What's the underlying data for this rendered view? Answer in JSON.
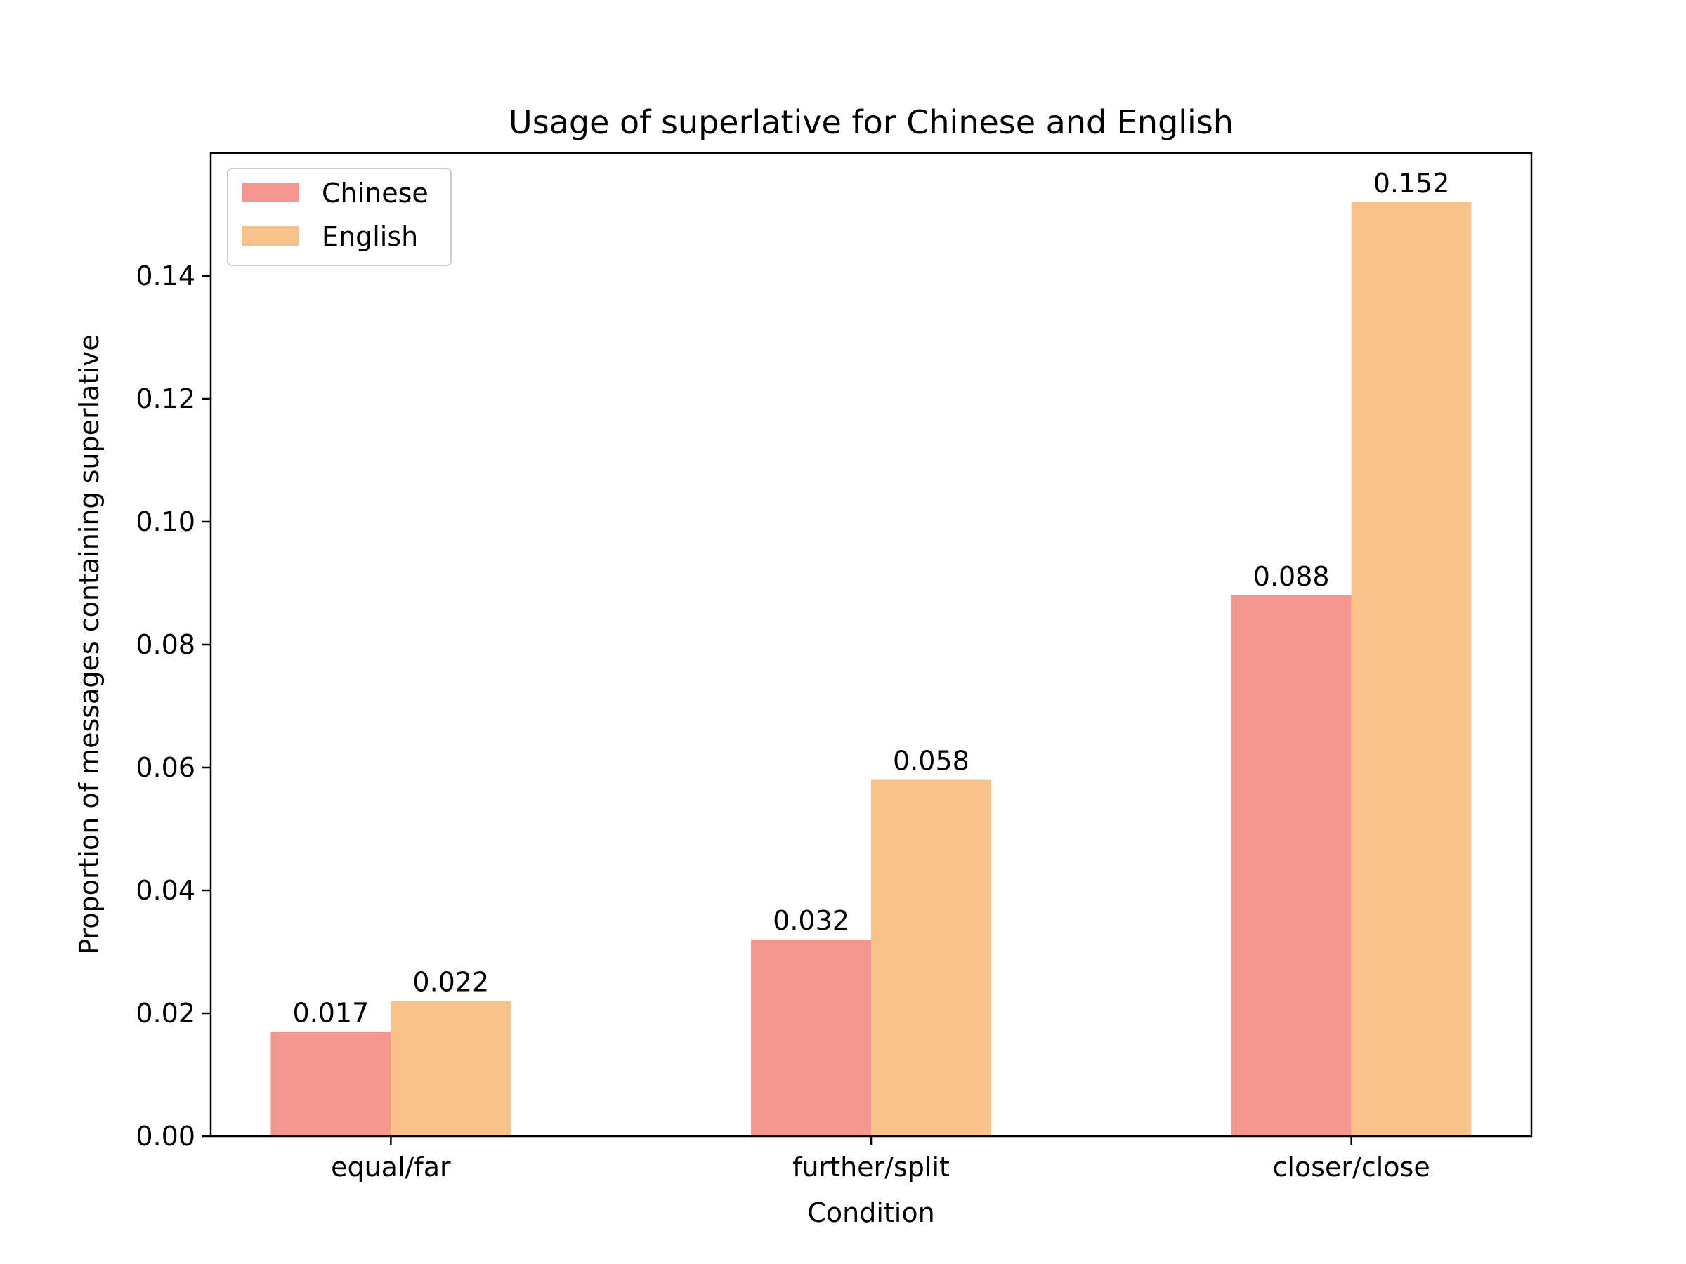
{
  "chart_data": {
    "type": "bar",
    "title": "Usage of superlative for Chinese and English",
    "xlabel": "Condition",
    "ylabel": "Proportion of messages containing superlative",
    "categories": [
      "equal/far",
      "further/split",
      "closer/close"
    ],
    "series": [
      {
        "name": "Chinese",
        "color": "#f4978e",
        "values": [
          0.017,
          0.032,
          0.088
        ],
        "labels": [
          "0.017",
          "0.032",
          "0.088"
        ]
      },
      {
        "name": "English",
        "color": "#f9c48c",
        "values": [
          0.022,
          0.058,
          0.152
        ],
        "labels": [
          "0.022",
          "0.058",
          "0.152"
        ]
      }
    ],
    "ylim": [
      0,
      0.16
    ],
    "yticks": [
      0.0,
      0.02,
      0.04,
      0.06,
      0.08,
      0.1,
      0.12,
      0.14
    ],
    "ytick_labels": [
      "0.00",
      "0.02",
      "0.04",
      "0.06",
      "0.08",
      "0.10",
      "0.12",
      "0.14"
    ],
    "grid": false,
    "legend_position": "top-left"
  }
}
